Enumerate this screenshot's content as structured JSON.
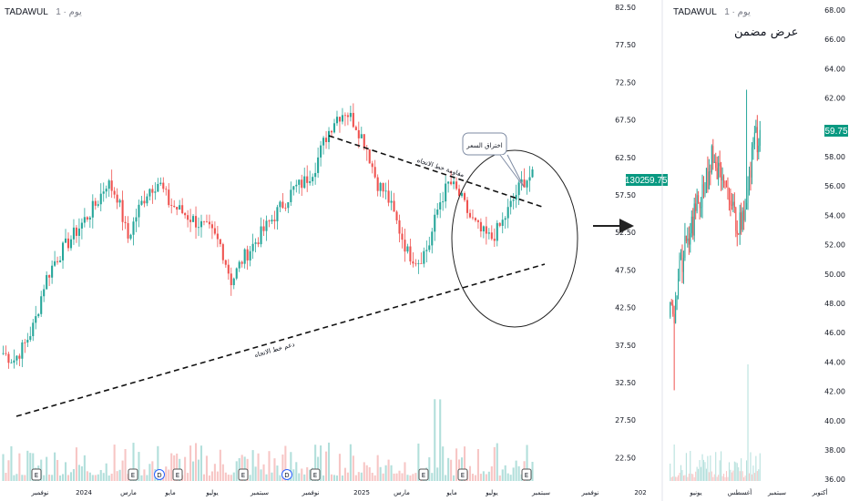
{
  "left_panel": {
    "symbol": "TADAWUL",
    "interval": "1 · يوم",
    "annotation_callout": "اختراق السعر",
    "resistance_label": "مقاومة خط الاتجاه",
    "support_label": "دعم خط الاتجاه",
    "price_badge_a": "1302",
    "price_badge_b": "59.75"
  },
  "right_panel": {
    "symbol": "TADAWUL",
    "interval": "1 · يوم",
    "title": "عرض مضمن",
    "price_badge": "59.75"
  },
  "colors": {
    "up": "#26a69a",
    "down": "#ef5350",
    "badge": "#089981"
  },
  "chart_data": [
    {
      "type": "candlestick",
      "title": "",
      "y_ticks": [
        "82.50",
        "77.50",
        "72.50",
        "67.50",
        "62.50",
        "57.50",
        "52.50",
        "47.50",
        "42.50",
        "37.50",
        "32.50",
        "27.50",
        "22.50"
      ],
      "ylim": [
        19,
        82.5
      ],
      "x_ticks": [
        "نوفمبر",
        "2024",
        "مارس",
        "مايو",
        "يوليو",
        "سبتمبر",
        "نوفمبر",
        "2025",
        "مارس",
        "مايو",
        "يوليو",
        "سبتمبر",
        "نوفمبر",
        "202"
      ],
      "anchors_close": [
        34,
        33,
        35,
        38,
        44,
        47,
        49,
        51,
        53,
        55,
        58,
        56,
        50,
        54,
        57,
        58,
        55,
        54,
        53,
        52,
        51,
        49,
        44,
        47,
        49,
        51,
        53,
        55,
        57,
        58,
        60,
        64,
        67,
        68,
        66,
        63,
        58,
        56,
        52,
        48,
        47,
        49,
        55,
        58,
        56,
        53,
        51,
        50,
        52,
        55,
        58,
        59
      ],
      "last_close": 59.75,
      "earnings_markers": [
        "E",
        "E",
        "D",
        "E",
        "E",
        "D",
        "E",
        "E",
        "E",
        "E"
      ]
    },
    {
      "type": "candlestick",
      "title": "عرض مضمن",
      "y_ticks": [
        "68.00",
        "66.00",
        "64.00",
        "62.00",
        "60.00",
        "58.00",
        "56.00",
        "54.00",
        "52.00",
        "50.00",
        "48.00",
        "46.00",
        "44.00",
        "42.00",
        "40.00",
        "38.00",
        "36.00"
      ],
      "ylim": [
        36,
        68
      ],
      "x_ticks": [
        "يونيو",
        "أغسطس",
        "سبتمبر",
        "أكتوبر"
      ],
      "anchors_close": [
        49,
        47,
        50,
        51,
        52,
        53,
        54,
        55,
        56,
        57,
        58,
        57,
        56,
        55,
        55,
        54,
        53,
        54,
        56,
        58,
        59,
        59.75
      ],
      "last_close": 59.75
    }
  ]
}
